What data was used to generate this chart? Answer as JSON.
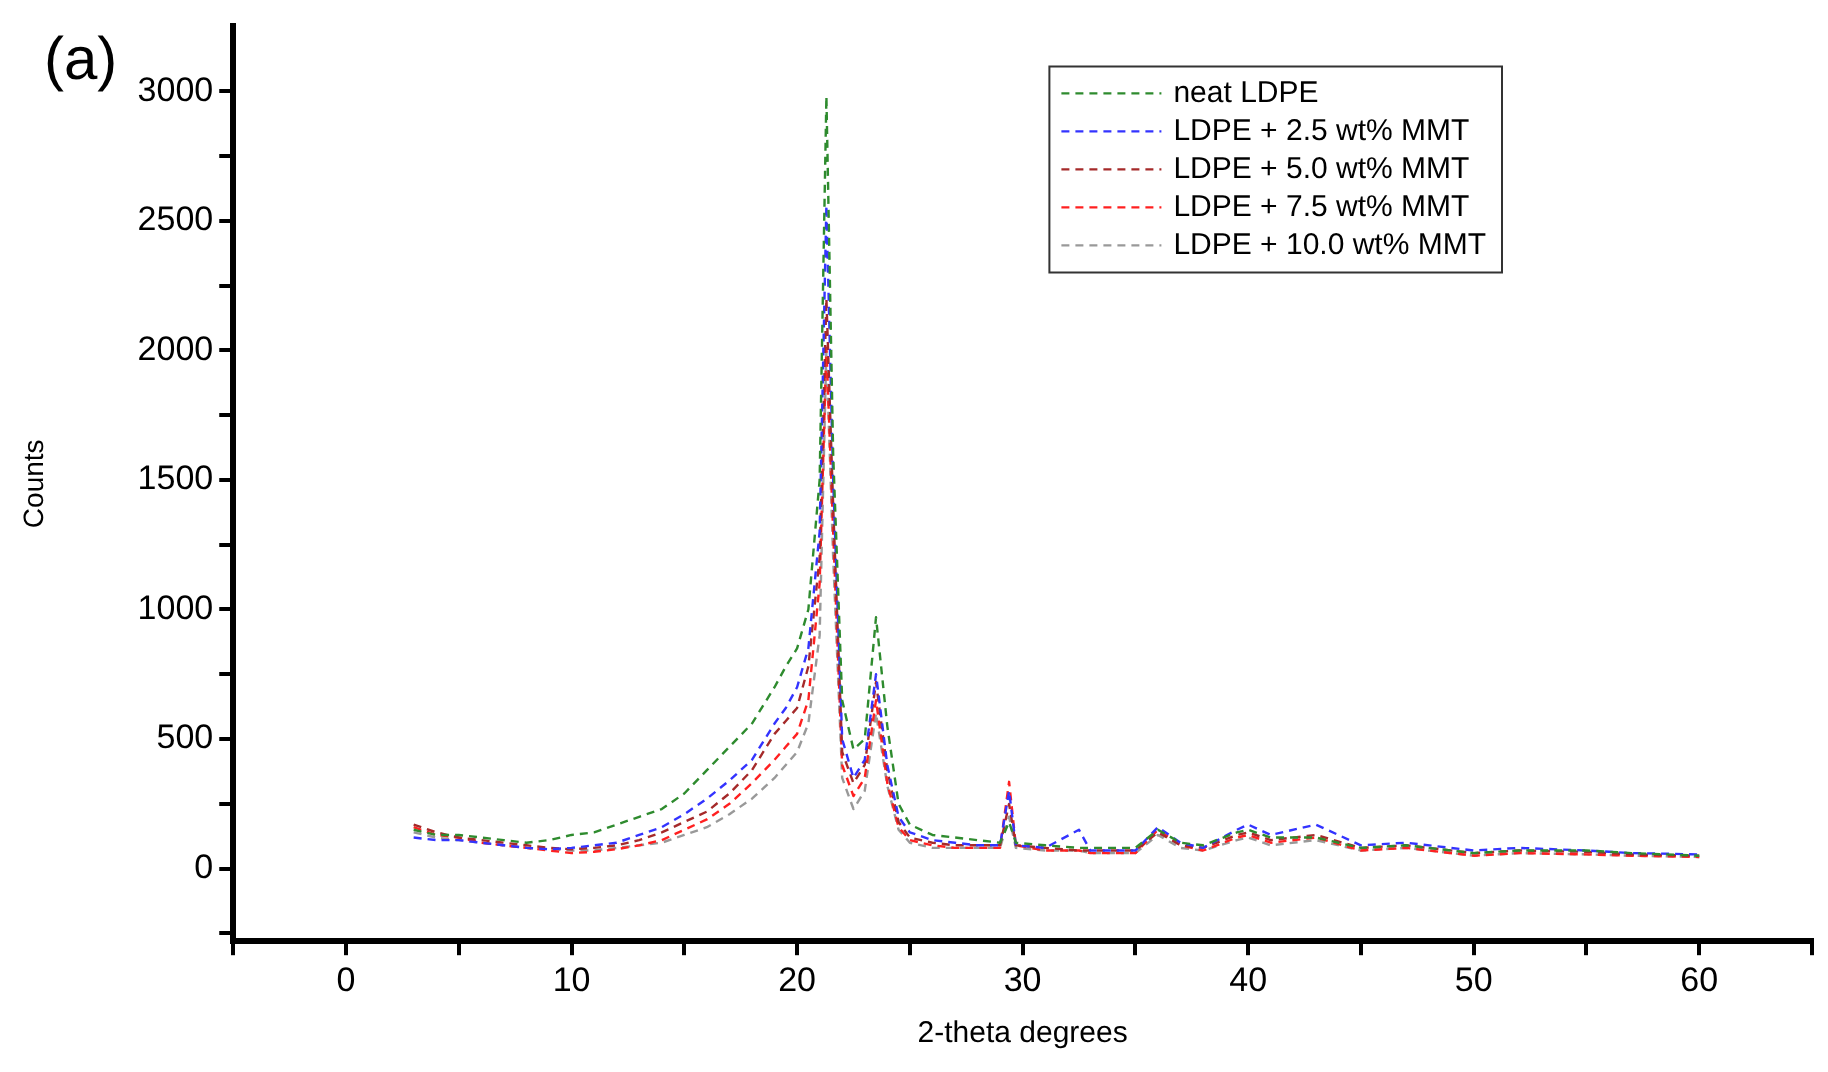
{
  "chart_data": {
    "type": "line",
    "xlabel": "2-theta degrees",
    "ylabel": "Counts",
    "annotations": [
      "(a)"
    ],
    "xlim": [
      -5,
      65
    ],
    "ylim": [
      -280,
      3250
    ],
    "xticks": [
      {
        "value": -5,
        "label": null
      },
      0,
      {
        "value": 5,
        "label": null
      },
      10,
      {
        "value": 15,
        "label": null
      },
      20,
      {
        "value": 25,
        "label": null
      },
      30,
      {
        "value": 35,
        "label": null
      },
      40,
      {
        "value": 45,
        "label": null
      },
      50,
      {
        "value": 55,
        "label": null
      },
      60,
      {
        "value": 65,
        "label": null
      }
    ],
    "yticks": [
      {
        "value": -250,
        "label": null
      },
      0,
      {
        "value": 250,
        "label": null
      },
      500,
      {
        "value": 750,
        "label": null
      },
      1000,
      {
        "value": 1250,
        "label": null
      },
      1500,
      {
        "value": 1750,
        "label": null
      },
      2000,
      {
        "value": 2250,
        "label": null
      },
      2500,
      {
        "value": 2750,
        "label": null
      },
      3000
    ],
    "grid": false,
    "legend": "top right",
    "marker": "none",
    "line_style": "dashed",
    "x": [
      3,
      4,
      5,
      6,
      7,
      8,
      9,
      10,
      11,
      12,
      13,
      14,
      15,
      16,
      17,
      18,
      19,
      19.5,
      20,
      20.5,
      21,
      21.3,
      21.6,
      22,
      22.5,
      23,
      23.5,
      24,
      24.5,
      25,
      26,
      27,
      28,
      29,
      29.4,
      29.7,
      31,
      32.5,
      33,
      35,
      36,
      37,
      38,
      39.5,
      40,
      41,
      43,
      45,
      47,
      50,
      52,
      55,
      57,
      60
    ],
    "series": [
      {
        "name": "neat LDPE",
        "color": "#2e8b2e",
        "values": [
          150,
          130,
          130,
          120,
          110,
          100,
          110,
          130,
          140,
          170,
          200,
          230,
          290,
          380,
          470,
          560,
          700,
          780,
          850,
          1000,
          1500,
          2980,
          1600,
          650,
          460,
          500,
          970,
          550,
          250,
          170,
          130,
          120,
          110,
          100,
          180,
          100,
          90,
          80,
          80,
          80,
          150,
          100,
          90,
          140,
          150,
          120,
          120,
          80,
          90,
          60,
          70,
          70,
          60,
          50
        ]
      },
      {
        "name": "LDPE + 2.5 wt% MMT",
        "color": "#3333ff",
        "values": [
          120,
          110,
          110,
          100,
          90,
          80,
          75,
          80,
          90,
          100,
          130,
          160,
          210,
          270,
          340,
          420,
          560,
          620,
          700,
          850,
          1300,
          2560,
          1500,
          500,
          350,
          420,
          750,
          400,
          200,
          140,
          110,
          100,
          90,
          90,
          300,
          90,
          80,
          150,
          70,
          70,
          160,
          100,
          80,
          150,
          170,
          130,
          170,
          90,
          100,
          70,
          80,
          70,
          60,
          55
        ]
      },
      {
        "name": "LDPE + 5.0 wt% MMT",
        "color": "#a52a2a",
        "values": [
          170,
          140,
          120,
          110,
          100,
          90,
          80,
          75,
          80,
          90,
          110,
          140,
          180,
          220,
          290,
          380,
          520,
          570,
          620,
          780,
          1200,
          2200,
          1400,
          450,
          330,
          400,
          720,
          380,
          180,
          120,
          100,
          90,
          90,
          90,
          250,
          90,
          80,
          70,
          70,
          70,
          140,
          90,
          80,
          130,
          140,
          110,
          130,
          80,
          90,
          60,
          70,
          65,
          55,
          50
        ]
      },
      {
        "name": "LDPE + 7.5 wt% MMT",
        "color": "#ff2020",
        "values": [
          160,
          130,
          120,
          100,
          90,
          80,
          70,
          60,
          65,
          75,
          90,
          110,
          150,
          190,
          250,
          330,
          420,
          470,
          520,
          650,
          1100,
          2010,
          1300,
          400,
          280,
          350,
          650,
          330,
          160,
          110,
          90,
          80,
          80,
          80,
          335,
          90,
          70,
          70,
          60,
          60,
          150,
          90,
          70,
          120,
          130,
          100,
          120,
          70,
          80,
          50,
          60,
          55,
          50,
          45
        ]
      },
      {
        "name": "LDPE + 10.0 wt% MMT",
        "color": "#999999",
        "values": [
          140,
          120,
          110,
          100,
          90,
          80,
          75,
          70,
          70,
          80,
          90,
          100,
          130,
          160,
          210,
          270,
          350,
          400,
          450,
          560,
          900,
          2000,
          1200,
          350,
          230,
          300,
          600,
          320,
          150,
          100,
          80,
          80,
          80,
          80,
          200,
          80,
          70,
          70,
          60,
          60,
          130,
          80,
          70,
          110,
          120,
          90,
          110,
          70,
          80,
          50,
          60,
          55,
          50,
          45
        ]
      }
    ]
  }
}
